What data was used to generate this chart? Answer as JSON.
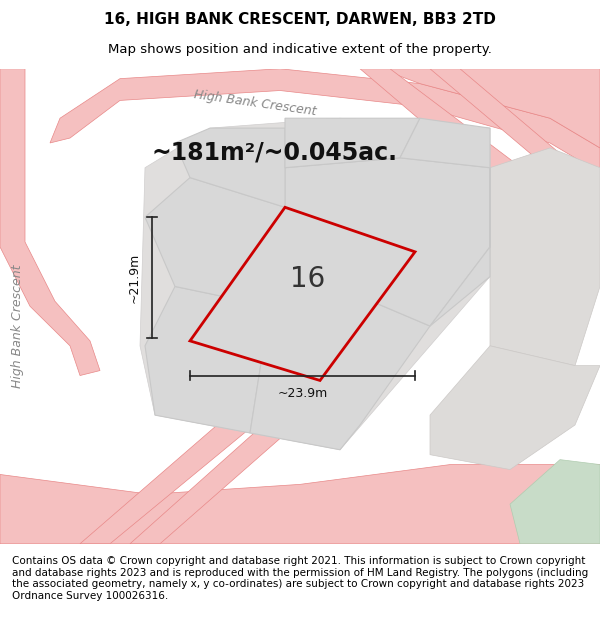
{
  "title_line1": "16, HIGH BANK CRESCENT, DARWEN, BB3 2TD",
  "title_line2": "Map shows position and indicative extent of the property.",
  "area_text": "~181m²/~0.045ac.",
  "label_16": "16",
  "dim_vertical": "~21.9m",
  "dim_horizontal": "~23.9m",
  "road_name_top": "High Bank Crescent",
  "road_name_left": "High Bank Crescent",
  "footer_text": "Contains OS data © Crown copyright and database right 2021. This information is subject to Crown copyright and database rights 2023 and is reproduced with the permission of HM Land Registry. The polygons (including the associated geometry, namely x, y co-ordinates) are subject to Crown copyright and database rights 2023 Ordnance Survey 100026316.",
  "bg_color": "#f0eeeb",
  "map_bg": "#f5f3f0",
  "plot_fill": "#d8d8d8",
  "plot_outline_color": "#cc0000",
  "road_color": "#f5c0c0",
  "road_edge_color": "#e88888",
  "green_color": "#c8dcc8",
  "title_fontsize": 11,
  "subtitle_fontsize": 9.5,
  "area_fontsize": 17,
  "label_fontsize": 20,
  "dim_fontsize": 9,
  "road_label_fontsize": 9,
  "footer_fontsize": 7.5
}
